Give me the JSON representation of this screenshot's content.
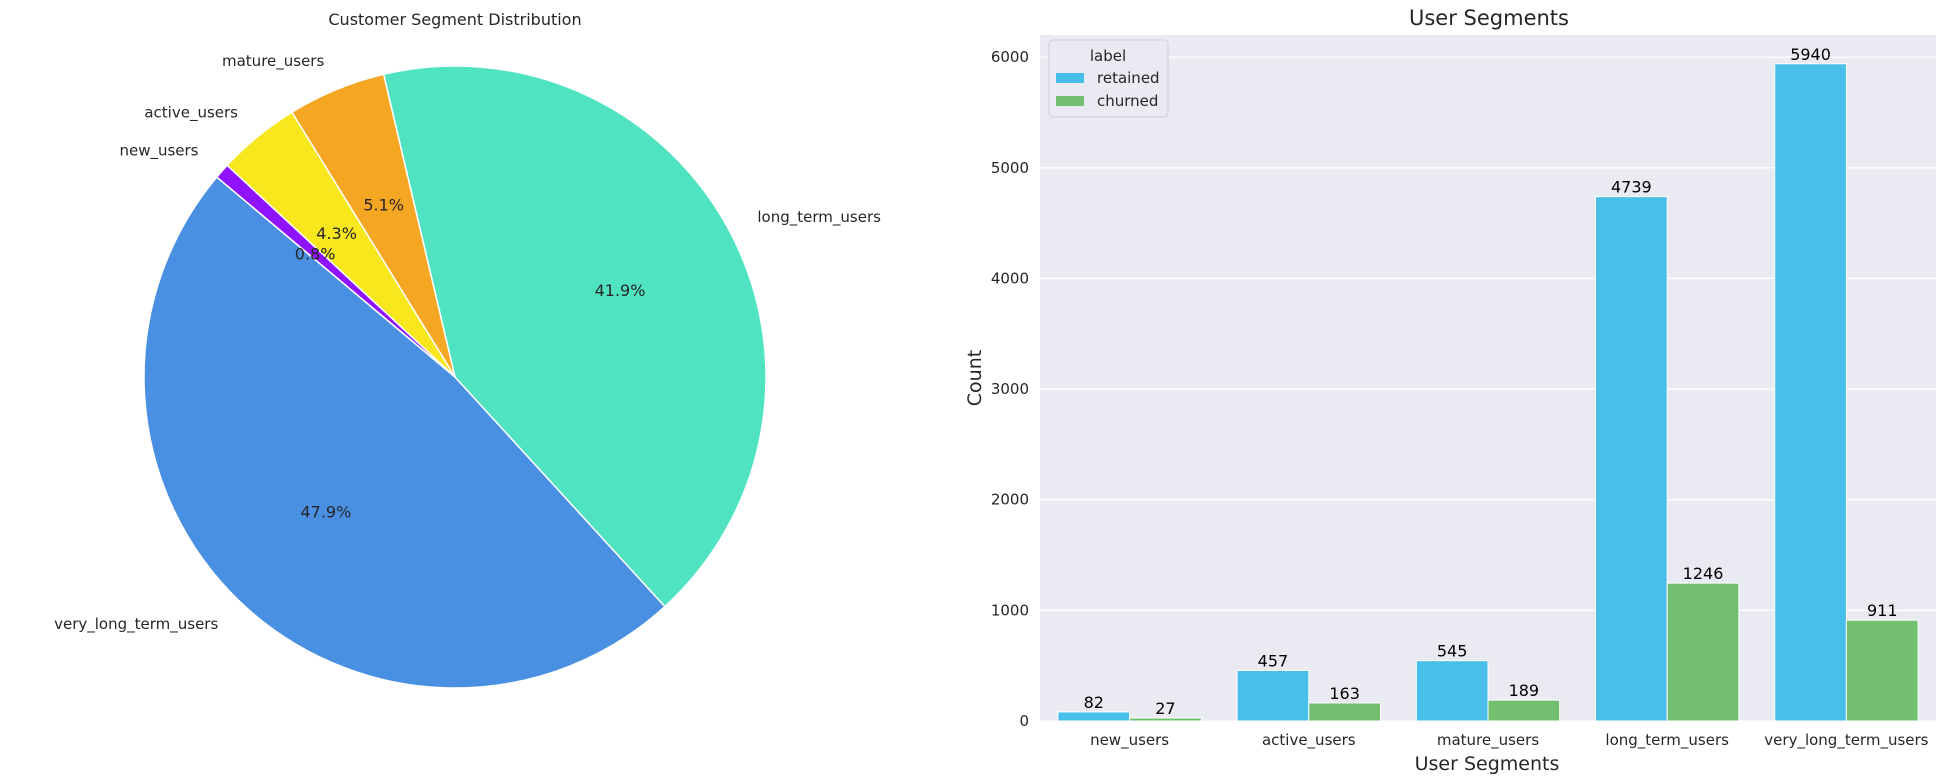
{
  "chart_data": [
    {
      "type": "pie",
      "title": "Customer Segment Distribution",
      "labels": [
        "very_long_term_users",
        "long_term_users",
        "mature_users",
        "active_users",
        "new_users"
      ],
      "values": [
        47.9,
        41.9,
        5.1,
        4.3,
        0.8
      ],
      "pct_labels": [
        "47.9%",
        "41.9%",
        "5.1%",
        "4.3%",
        "0.8%"
      ],
      "colors": [
        "#4a90e2",
        "#50e3c2",
        "#f5a623",
        "#f8e71c",
        "#9013fe"
      ]
    },
    {
      "type": "bar",
      "title": "User Segments",
      "xlabel": "User Segments",
      "ylabel": "Count",
      "categories": [
        "new_users",
        "active_users",
        "mature_users",
        "long_term_users",
        "very_long_term_users"
      ],
      "series": [
        {
          "name": "retained",
          "values": [
            82,
            457,
            545,
            4739,
            5940
          ],
          "color": "#48bfe8"
        },
        {
          "name": "churned",
          "values": [
            27,
            163,
            189,
            1246,
            911
          ],
          "color": "#72bf6f"
        }
      ],
      "ylim": [
        0,
        6200
      ],
      "yticks": [
        0,
        1000,
        2000,
        3000,
        4000,
        5000,
        6000
      ],
      "legend": {
        "title": "label",
        "placement": "top-left"
      },
      "grid": true,
      "background": "#eaeaf2"
    }
  ]
}
